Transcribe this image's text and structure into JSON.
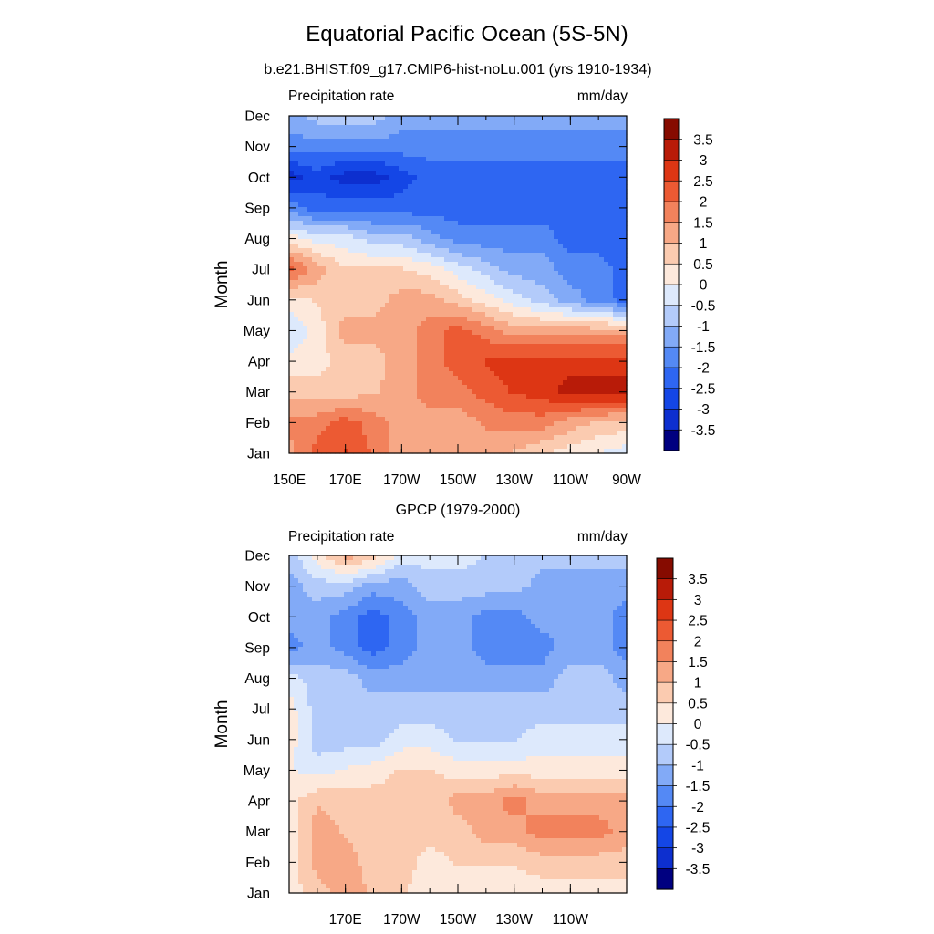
{
  "figure": {
    "title": "Equatorial Pacific Ocean (5S-5N)"
  },
  "palette": [
    "#000080",
    "#0a1fa8",
    "#0d2fcf",
    "#1446e6",
    "#2e66f2",
    "#5489f5",
    "#82aaf7",
    "#b3cbfa",
    "#dde9fc",
    "#fde9dc",
    "#fbcbb0",
    "#f7a886",
    "#f2825c",
    "#ec5a33",
    "#dd3614",
    "#b81b08",
    "#860b00"
  ],
  "chart_data": [
    {
      "type": "heatmap",
      "title": "b.e21.BHIST.f09_g17.CMIP6-hist-noLu.001 (yrs 1910-1934)",
      "left_string": "Precipitation rate",
      "right_string": "mm/day",
      "ylabel": "Month",
      "xlabel": "",
      "x_tick_labels": [
        "150E",
        "170E",
        "170W",
        "150W",
        "130W",
        "110W",
        "90W"
      ],
      "y_tick_labels": [
        "Jan",
        "Feb",
        "Mar",
        "Apr",
        "May",
        "Jun",
        "Jul",
        "Aug",
        "Sep",
        "Oct",
        "Nov",
        "Dec"
      ],
      "x_lon": [
        150,
        160,
        170,
        180,
        190,
        200,
        210,
        220,
        230,
        240,
        250,
        260,
        270
      ],
      "colorbar_labels": [
        "-3.5",
        "-3",
        "-2.5",
        "-2",
        "-1.5",
        "-1",
        "-0.5",
        "0",
        "0.5",
        "1",
        "1.5",
        "2",
        "2.5",
        "3",
        "3.5"
      ],
      "levels": [
        -3.75,
        -3.5,
        -3.25,
        -3,
        -2.75,
        -2.5,
        -2.25,
        -2,
        -1.75,
        -1.5,
        -1.25,
        -1,
        -0.75,
        -0.5,
        -0.25,
        0,
        0.25,
        0.5,
        0.75,
        1,
        1.25,
        1.5,
        1.75,
        2,
        2.25,
        2.5,
        2.75,
        3,
        3.25,
        3.5,
        3.75
      ],
      "values": [
        [
          1.5,
          2.5,
          2.8,
          2.2,
          1.5,
          1.5,
          1.5,
          1.5,
          1.2,
          0.8,
          0.5,
          0.2,
          0.0
        ],
        [
          2.0,
          2.0,
          2.5,
          2.0,
          1.5,
          1.5,
          1.5,
          1.8,
          2.0,
          2.0,
          1.5,
          1.2,
          1.0
        ],
        [
          1.0,
          1.0,
          1.0,
          1.2,
          1.5,
          2.0,
          2.0,
          2.5,
          2.8,
          3.0,
          3.5,
          3.5,
          3.5
        ],
        [
          0.5,
          0.5,
          1.0,
          1.0,
          1.5,
          2.0,
          2.5,
          2.8,
          3.0,
          3.0,
          3.0,
          3.0,
          3.0
        ],
        [
          -0.3,
          0.5,
          1.5,
          1.5,
          1.5,
          2.0,
          2.5,
          2.0,
          1.5,
          1.5,
          1.5,
          1.5,
          1.5
        ],
        [
          0.5,
          0.8,
          1.0,
          1.0,
          1.5,
          1.5,
          1.0,
          0.5,
          0.0,
          -0.5,
          -1.0,
          -1.5,
          -2.0
        ],
        [
          2.5,
          1.5,
          0.8,
          0.8,
          0.8,
          0.5,
          0.0,
          -0.5,
          -1.0,
          -1.0,
          -1.5,
          -1.5,
          -2.0
        ],
        [
          0.5,
          0.0,
          0.0,
          -0.5,
          -0.5,
          -1.0,
          -1.5,
          -1.5,
          -1.5,
          -1.5,
          -2.0,
          -2.0,
          -2.0
        ],
        [
          -1.5,
          -2.0,
          -2.0,
          -2.0,
          -2.0,
          -2.0,
          -2.0,
          -2.0,
          -2.0,
          -2.0,
          -2.0,
          -2.0,
          -2.0
        ],
        [
          -3.0,
          -2.5,
          -3.0,
          -3.0,
          -2.5,
          -2.0,
          -2.0,
          -2.0,
          -2.0,
          -2.0,
          -2.0,
          -2.0,
          -2.0
        ],
        [
          -1.5,
          -1.5,
          -1.5,
          -1.5,
          -1.5,
          -1.5,
          -1.5,
          -1.5,
          -1.5,
          -1.5,
          -1.5,
          -1.5,
          -1.5
        ],
        [
          -1.0,
          -0.5,
          -0.5,
          -0.5,
          -1.0,
          -1.0,
          -1.0,
          -1.0,
          -1.0,
          -1.0,
          -1.0,
          -1.0,
          -1.0
        ]
      ]
    },
    {
      "type": "heatmap",
      "title": "GPCP (1979-2000)",
      "left_string": "Precipitation rate",
      "right_string": "mm/day",
      "ylabel": "Month",
      "xlabel": "",
      "x_tick_labels": [
        "170E",
        "170W",
        "150W",
        "130W",
        "110W"
      ],
      "y_tick_labels": [
        "Jan",
        "Feb",
        "Mar",
        "Apr",
        "May",
        "Jun",
        "Jul",
        "Aug",
        "Sep",
        "Oct",
        "Nov",
        "Dec"
      ],
      "x_lon": [
        150,
        160,
        170,
        180,
        190,
        200,
        210,
        220,
        230,
        240,
        250,
        260,
        270
      ],
      "colorbar_labels": [
        "-3.5",
        "-3",
        "-2.5",
        "-2",
        "-1.5",
        "-1",
        "-0.5",
        "0",
        "0.5",
        "1",
        "1.5",
        "2",
        "2.5",
        "3",
        "3.5"
      ],
      "levels": [
        -3.75,
        -3.5,
        -3.25,
        -3,
        -2.75,
        -2.5,
        -2.25,
        -2,
        -1.75,
        -1.5,
        -1.25,
        -1,
        -0.75,
        -0.5,
        -0.25,
        0,
        0.25,
        0.5,
        0.75,
        1,
        1.25,
        1.5,
        1.75,
        2,
        2.25,
        2.5,
        2.75,
        3,
        3.25,
        3.5,
        3.75
      ],
      "values": [
        [
          0.5,
          1.0,
          1.5,
          1.2,
          0.8,
          0.5,
          0.5,
          0.5,
          0.5,
          0.5,
          0.5,
          0.5,
          0.5
        ],
        [
          0.5,
          1.5,
          1.5,
          1.0,
          1.0,
          0.5,
          0.8,
          0.8,
          0.8,
          1.0,
          1.0,
          1.0,
          1.0
        ],
        [
          0.5,
          1.5,
          1.2,
          1.0,
          1.0,
          1.0,
          1.0,
          1.5,
          1.5,
          2.0,
          2.0,
          2.0,
          1.5
        ],
        [
          0.5,
          1.2,
          1.0,
          1.0,
          1.0,
          0.8,
          1.5,
          1.5,
          2.0,
          1.5,
          1.5,
          1.5,
          1.5
        ],
        [
          0.3,
          0.0,
          0.3,
          0.5,
          0.8,
          0.8,
          0.5,
          0.5,
          0.5,
          0.5,
          0.5,
          0.5,
          0.5
        ],
        [
          0.5,
          -0.5,
          -0.5,
          -0.5,
          0.0,
          0.0,
          -0.3,
          -0.3,
          -0.3,
          0.0,
          0.0,
          0.0,
          0.0
        ],
        [
          0.5,
          -0.5,
          -0.5,
          -0.5,
          -0.5,
          -0.5,
          -0.5,
          -0.5,
          -0.5,
          -0.5,
          -0.5,
          -0.5,
          -0.5
        ],
        [
          0.0,
          -0.5,
          -0.5,
          -1.0,
          -1.0,
          -1.0,
          -1.0,
          -1.0,
          -1.0,
          -1.0,
          -0.5,
          -0.5,
          -1.0
        ],
        [
          -1.5,
          -1.0,
          -1.5,
          -2.0,
          -1.5,
          -1.0,
          -1.0,
          -1.5,
          -1.5,
          -1.5,
          -1.0,
          -1.0,
          -1.5
        ],
        [
          -1.0,
          -1.0,
          -1.5,
          -2.0,
          -1.5,
          -1.0,
          -1.0,
          -1.5,
          -1.5,
          -1.0,
          -1.0,
          -1.0,
          -1.5
        ],
        [
          -1.0,
          -0.5,
          -0.5,
          -1.0,
          -1.0,
          -0.5,
          -0.5,
          -0.5,
          -0.5,
          -1.0,
          -1.0,
          -1.0,
          -1.0
        ],
        [
          -0.5,
          0.5,
          1.5,
          1.0,
          0.0,
          0.0,
          0.0,
          -0.3,
          -0.5,
          -0.5,
          -0.5,
          -0.5,
          -0.5
        ]
      ]
    }
  ]
}
